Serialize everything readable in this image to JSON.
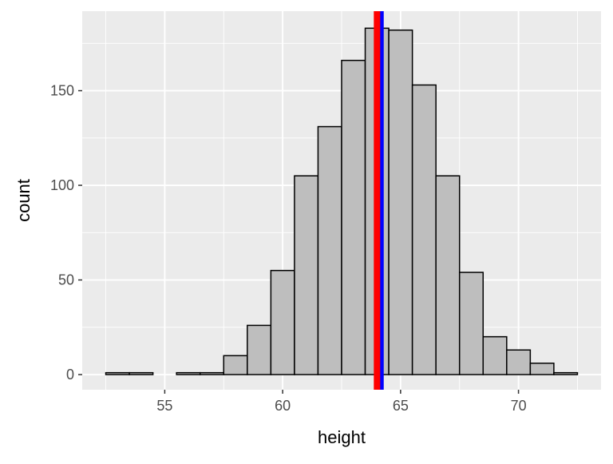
{
  "chart_data": {
    "type": "bar",
    "subtype": "histogram",
    "title": "",
    "xlabel": "height",
    "ylabel": "count",
    "xlim": [
      51.5,
      73.5
    ],
    "ylim": [
      -8,
      192
    ],
    "x_ticks": [
      55,
      60,
      65,
      70
    ],
    "y_ticks": [
      0,
      50,
      100,
      150
    ],
    "grid": true,
    "bin_width": 1,
    "bins": [
      {
        "x0": 52.5,
        "x1": 53.5,
        "count": 1
      },
      {
        "x0": 53.5,
        "x1": 54.5,
        "count": 1
      },
      {
        "x0": 54.5,
        "x1": 55.5,
        "count": 0
      },
      {
        "x0": 55.5,
        "x1": 56.5,
        "count": 1
      },
      {
        "x0": 56.5,
        "x1": 57.5,
        "count": 1
      },
      {
        "x0": 57.5,
        "x1": 58.5,
        "count": 10
      },
      {
        "x0": 58.5,
        "x1": 59.5,
        "count": 26
      },
      {
        "x0": 59.5,
        "x1": 60.5,
        "count": 55
      },
      {
        "x0": 60.5,
        "x1": 61.5,
        "count": 105
      },
      {
        "x0": 61.5,
        "x1": 62.5,
        "count": 131
      },
      {
        "x0": 62.5,
        "x1": 63.5,
        "count": 166
      },
      {
        "x0": 63.5,
        "x1": 64.5,
        "count": 183
      },
      {
        "x0": 64.5,
        "x1": 65.5,
        "count": 182
      },
      {
        "x0": 65.5,
        "x1": 66.5,
        "count": 153
      },
      {
        "x0": 66.5,
        "x1": 67.5,
        "count": 105
      },
      {
        "x0": 67.5,
        "x1": 68.5,
        "count": 54
      },
      {
        "x0": 68.5,
        "x1": 69.5,
        "count": 20
      },
      {
        "x0": 69.5,
        "x1": 70.5,
        "count": 13
      },
      {
        "x0": 70.5,
        "x1": 71.5,
        "count": 6
      },
      {
        "x0": 71.5,
        "x1": 72.5,
        "count": 1
      }
    ],
    "reference_lines": [
      {
        "x": 64.15,
        "color": "#0000ff"
      },
      {
        "x": 64.0,
        "color": "#ff0000"
      }
    ]
  },
  "colors": {
    "panel_background": "#ebebeb",
    "grid_major": "#ffffff",
    "bar_fill": "#bebebe",
    "bar_stroke": "#000000"
  }
}
